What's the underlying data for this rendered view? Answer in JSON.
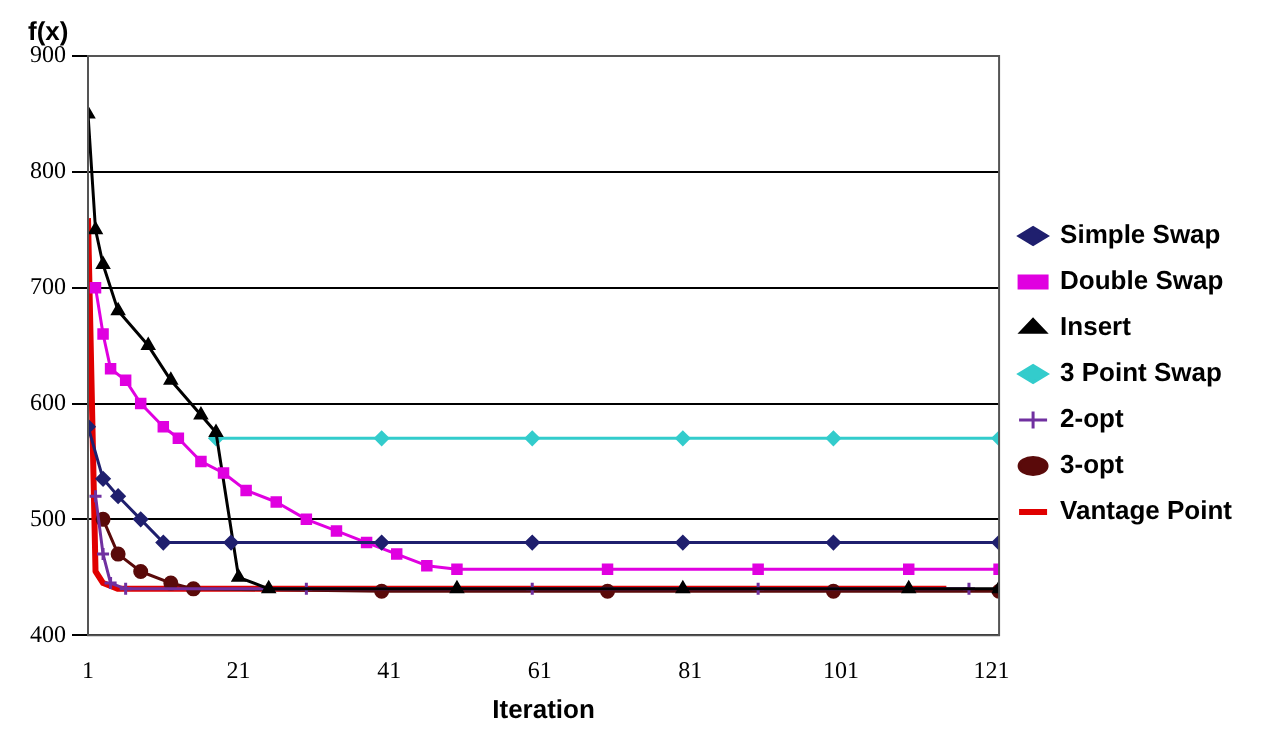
{
  "chart_data": {
    "type": "line",
    "ylabel": "f(x)",
    "xlabel": "Iteration",
    "xlim": [
      1,
      122
    ],
    "xticks": [
      1,
      21,
      41,
      61,
      81,
      101,
      121
    ],
    "ylim": [
      400,
      900
    ],
    "yticks": [
      400,
      500,
      600,
      700,
      800,
      900
    ],
    "grid": "y",
    "legend": "right",
    "line_style": "solid",
    "series": [
      {
        "name": "Simple Swap",
        "color": "#1f1f6e",
        "marker": "diamond",
        "x": [
          1,
          3,
          5,
          8,
          11,
          20,
          40,
          60,
          80,
          100,
          122
        ],
        "values": [
          580,
          535,
          520,
          500,
          480,
          480,
          480,
          480,
          480,
          480,
          480
        ]
      },
      {
        "name": "Double Swap",
        "color": "#e000e0",
        "marker": "square",
        "x": [
          2,
          3,
          4,
          6,
          8,
          11,
          13,
          16,
          19,
          22,
          26,
          30,
          34,
          38,
          42,
          46,
          50,
          70,
          90,
          110,
          122
        ],
        "values": [
          700,
          660,
          630,
          620,
          600,
          580,
          570,
          550,
          540,
          525,
          515,
          500,
          490,
          480,
          470,
          460,
          457,
          457,
          457,
          457,
          457
        ]
      },
      {
        "name": "Insert",
        "color": "#000000",
        "marker": "triangle",
        "x": [
          1,
          2,
          3,
          5,
          9,
          12,
          16,
          18,
          21,
          25,
          50,
          80,
          110,
          122
        ],
        "values": [
          850,
          750,
          720,
          680,
          650,
          620,
          590,
          575,
          450,
          440,
          440,
          440,
          440,
          440
        ]
      },
      {
        "name": "3 Point Swap",
        "color": "#33cccc",
        "marker": "diamond",
        "x": [
          18,
          40,
          60,
          80,
          100,
          122
        ],
        "values": [
          570,
          570,
          570,
          570,
          570,
          570
        ]
      },
      {
        "name": "2-opt",
        "color": "#7030a0",
        "marker": "cross",
        "x": [
          2,
          3,
          4,
          6,
          30,
          60,
          90,
          118
        ],
        "values": [
          520,
          470,
          445,
          440,
          440,
          440,
          440,
          440
        ]
      },
      {
        "name": "3-opt",
        "color": "#5a0a0a",
        "marker": "circle",
        "x": [
          3,
          5,
          8,
          12,
          15,
          40,
          70,
          100,
          122
        ],
        "values": [
          500,
          470,
          455,
          445,
          440,
          438,
          438,
          438,
          438
        ]
      },
      {
        "name": "Vantage Point",
        "color": "#e00000",
        "marker": "none",
        "x": [
          1,
          2,
          3,
          5,
          20,
          50,
          80,
          115
        ],
        "values": [
          760,
          455,
          445,
          440,
          440,
          440,
          440,
          440
        ]
      }
    ]
  }
}
